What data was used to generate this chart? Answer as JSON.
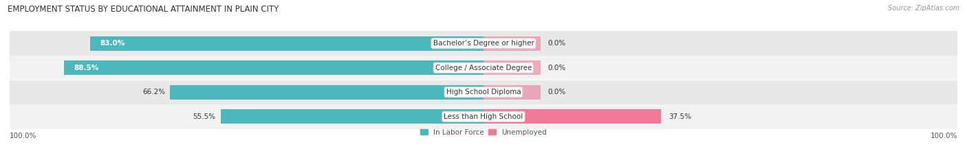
{
  "title": "EMPLOYMENT STATUS BY EDUCATIONAL ATTAINMENT IN PLAIN CITY",
  "source": "Source: ZipAtlas.com",
  "categories": [
    "Less than High School",
    "High School Diploma",
    "College / Associate Degree",
    "Bachelor’s Degree or higher"
  ],
  "labor_force": [
    55.5,
    66.2,
    88.5,
    83.0
  ],
  "unemployed": [
    37.5,
    0.0,
    0.0,
    0.0
  ],
  "labor_color": "#4db8bc",
  "unemployed_color": "#f07898",
  "row_bg_colors": [
    "#f2f2f2",
    "#e8e8e8"
  ],
  "label_bg_color": "#ffffff",
  "title_fontsize": 8.5,
  "source_fontsize": 7,
  "bar_label_fontsize": 7.5,
  "category_fontsize": 7.5,
  "legend_fontsize": 7.5,
  "left_axis_label": "100.0%",
  "right_axis_label": "100.0%",
  "background_color": "#ffffff",
  "max_val": 100,
  "unemp_stub_val": 12
}
